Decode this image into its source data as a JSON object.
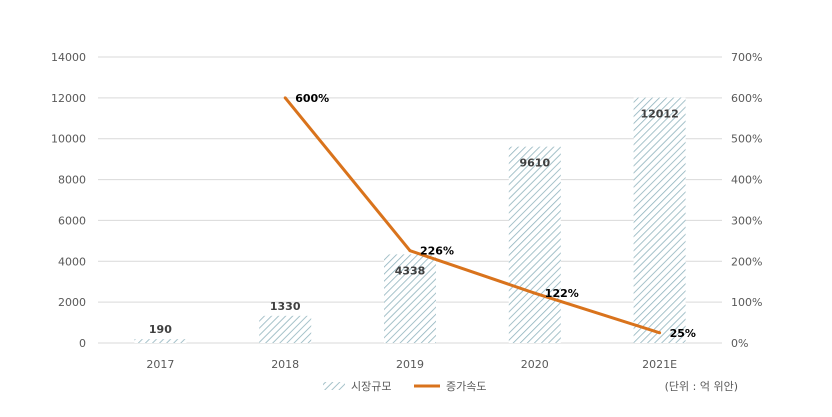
{
  "chart_data": {
    "type": "bar",
    "categories": [
      "2017",
      "2018",
      "2019",
      "2020",
      "2021E"
    ],
    "series": [
      {
        "name": "시장규모",
        "type": "bar",
        "axis": "left",
        "values": [
          190,
          1330,
          4338,
          9610,
          12012
        ],
        "labels": [
          "190",
          "1330",
          "4338",
          "9610",
          "12012"
        ]
      },
      {
        "name": "증가속도",
        "type": "line",
        "axis": "right",
        "values": [
          null,
          600,
          226,
          122,
          25
        ],
        "labels": [
          "",
          "600%",
          "226%",
          "122%",
          "25%"
        ]
      }
    ],
    "y_left": {
      "min": 0,
      "max": 14000,
      "ticks": [
        0,
        2000,
        4000,
        6000,
        8000,
        10000,
        12000,
        14000
      ],
      "tick_labels": [
        "0",
        "2000",
        "4000",
        "6000",
        "8000",
        "10000",
        "12000",
        "14000"
      ]
    },
    "y_right": {
      "min": 0,
      "max": 700,
      "ticks": [
        0,
        100,
        200,
        300,
        400,
        500,
        600,
        700
      ],
      "tick_labels": [
        "0%",
        "100%",
        "200%",
        "300%",
        "400%",
        "500%",
        "600%",
        "700%"
      ]
    },
    "grid": true,
    "legend": {
      "position": "bottom",
      "items": [
        "시장규모",
        "증가속도"
      ]
    },
    "unit_note": "(단위 : 억 위안)",
    "colors": {
      "bar": "#8fb3bd",
      "line": "#d9731c",
      "grid": "#d9d9d9"
    }
  }
}
